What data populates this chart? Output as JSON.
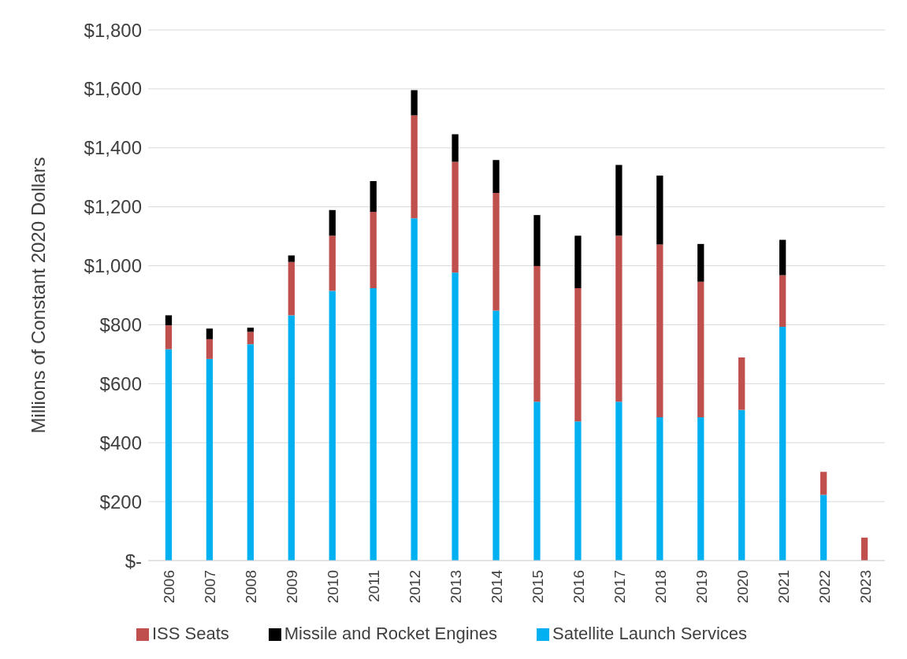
{
  "chart_data": {
    "type": "bar",
    "stacked": true,
    "ylabel": "Millions of Constant 2020 Dollars",
    "categories": [
      "2006",
      "2007",
      "2008",
      "2009",
      "2010",
      "2011",
      "2012",
      "2013",
      "2014",
      "2015",
      "2016",
      "2017",
      "2018",
      "2019",
      "2020",
      "2021",
      "2022",
      "2023"
    ],
    "series": [
      {
        "name": "Satellite Launch Services",
        "color": "#00b0f0",
        "values": [
          717,
          684,
          734,
          832,
          915,
          924,
          1161,
          977,
          848,
          539,
          472,
          539,
          486,
          486,
          511,
          793,
          223,
          null
        ]
      },
      {
        "name": "ISS Seats",
        "color": "#c0504d",
        "values": [
          81,
          67,
          42,
          181,
          187,
          259,
          349,
          376,
          399,
          460,
          452,
          563,
          586,
          460,
          178,
          175,
          78,
          78
        ]
      },
      {
        "name": "Missile and Rocket Engines",
        "color": "#000000",
        "values": [
          34,
          36,
          14,
          22,
          87,
          104,
          86,
          93,
          112,
          173,
          178,
          240,
          234,
          128,
          null,
          120,
          null,
          null
        ]
      }
    ],
    "ylim": [
      0,
      1800
    ],
    "yticks": [
      {
        "value": 0,
        "label": "$-"
      },
      {
        "value": 200,
        "label": "$200"
      },
      {
        "value": 400,
        "label": "$400"
      },
      {
        "value": 600,
        "label": "$600"
      },
      {
        "value": 800,
        "label": "$800"
      },
      {
        "value": 1000,
        "label": "$1,000"
      },
      {
        "value": 1200,
        "label": "$1,200"
      },
      {
        "value": 1400,
        "label": "$1,400"
      },
      {
        "value": 1600,
        "label": "$1,600"
      },
      {
        "value": 1800,
        "label": "$1,800"
      }
    ],
    "grid": "y",
    "legend": "bottom"
  }
}
